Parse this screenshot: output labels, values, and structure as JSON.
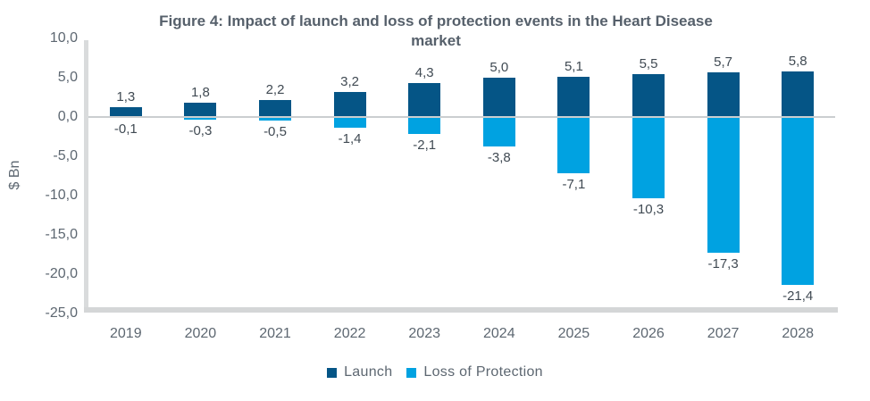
{
  "figure": {
    "title_lines": [
      "Figure 4: Impact of launch and loss of protection events in the Heart Disease",
      "market"
    ],
    "y_axis_title": "$ Bn"
  },
  "colors": {
    "launch": "#055586",
    "loss_of_protection": "#00A2E1",
    "axis_line": "#D9DBDC",
    "zero_line": "#CBCED0",
    "tick_text": "#5D6771",
    "data_label_text": "#404A53",
    "title_text": "#56606B"
  },
  "chart_data": {
    "type": "bar",
    "title": "Figure 4: Impact of launch and loss of protection events in the Heart Disease market",
    "xlabel": "",
    "ylabel": "$ Bn",
    "categories": [
      "2019",
      "2020",
      "2021",
      "2022",
      "2023",
      "2024",
      "2025",
      "2026",
      "2027",
      "2028"
    ],
    "series": [
      {
        "name": "Launch",
        "color": "#055586",
        "values": [
          1.3,
          1.8,
          2.2,
          3.2,
          4.3,
          5.0,
          5.1,
          5.5,
          5.7,
          5.8
        ],
        "labels": [
          "1,3",
          "1,8",
          "2,2",
          "3,2",
          "4,3",
          "5,0",
          "5,1",
          "5,5",
          "5,7",
          "5,8"
        ]
      },
      {
        "name": "Loss of Protection",
        "color": "#00A2E1",
        "values": [
          -0.1,
          -0.3,
          -0.5,
          -1.4,
          -2.1,
          -3.8,
          -7.1,
          -10.3,
          -17.3,
          -21.4
        ],
        "labels": [
          "-0,1",
          "-0,3",
          "-0,5",
          "-1,4",
          "-2,1",
          "-3,8",
          "-7,1",
          "-10,3",
          "-17,3",
          "-21,4"
        ]
      }
    ],
    "ylim": [
      -25,
      10
    ],
    "yticks": [
      {
        "value": 10,
        "label": "10,0"
      },
      {
        "value": 5,
        "label": "5,0"
      },
      {
        "value": 0,
        "label": "0,0"
      },
      {
        "value": -5,
        "label": "-5,0"
      },
      {
        "value": -10,
        "label": "-10,0"
      },
      {
        "value": -15,
        "label": "-15,0"
      },
      {
        "value": -20,
        "label": "-20,0"
      },
      {
        "value": -25,
        "label": "-25,0"
      }
    ],
    "grid": "zero-baseline-only",
    "legend_position": "bottom",
    "number_format": "comma-decimal",
    "bar_mode": "positive-negative-from-zero"
  }
}
